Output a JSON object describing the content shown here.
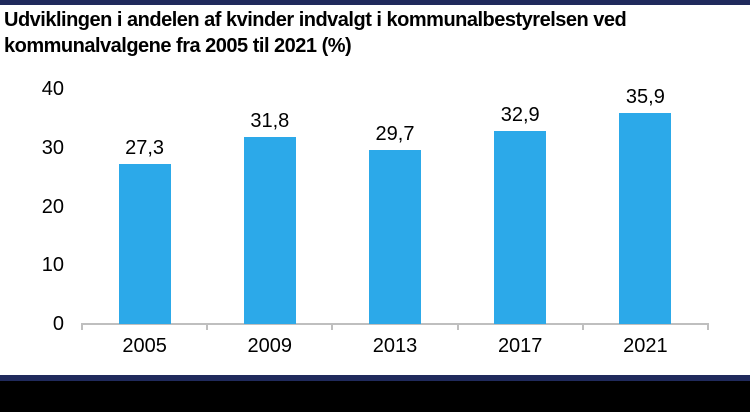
{
  "page": {
    "background": "#FFFFFF",
    "top_stripe_color": "#202A5C",
    "bottom_stripe_color": "#202A5C",
    "bottom_bar_color": "#000000"
  },
  "header": {
    "title_line1": "Udviklingen i andelen af kvinder indvalgt i kommunalbestyrelsen ved",
    "title_line2": "kommunalvalgene fra 2005 til 2021 (%)"
  },
  "chart_data": {
    "type": "bar",
    "title": "Udviklingen i andelen af kvinder indvalgt i kommunalbestyrelsen ved kommunalvalgene fra 2005 til 2021 (%)",
    "categories": [
      "2005",
      "2009",
      "2013",
      "2017",
      "2021"
    ],
    "values": [
      27.3,
      31.8,
      29.7,
      32.9,
      35.9
    ],
    "value_labels": [
      "27,3",
      "31,8",
      "29,7",
      "32,9",
      "35,9"
    ],
    "xlabel": "",
    "ylabel": "",
    "ylim": [
      0,
      40
    ],
    "yticks": [
      0,
      10,
      20,
      30,
      40
    ],
    "ytick_labels": [
      "0",
      "10",
      "20",
      "30",
      "40"
    ],
    "grid": false,
    "legend": false,
    "bar_color": "#2CA9E9",
    "axis_color": "#BFBFBF",
    "label_color": "#000000"
  }
}
